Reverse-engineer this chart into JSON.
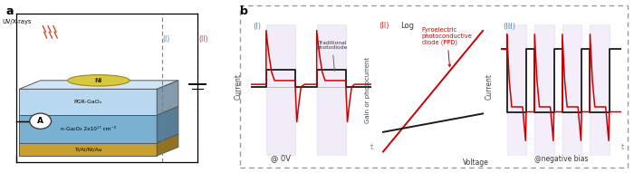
{
  "fig_width": 7.0,
  "fig_height": 1.91,
  "dpi": 100,
  "colors": {
    "red": "#cc0000",
    "black": "#1a1a1a",
    "blue_label": "#4488cc",
    "red_label": "#cc3333",
    "light_purple": "#ddd0ee",
    "gray_arrow": "#888888",
    "gray_border": "#999999",
    "device_blue_light": "#b8d8f0",
    "device_blue_mid": "#7ab0d0",
    "device_gold": "#c8a030",
    "device_ni": "#d8c840",
    "bg": "#f0f0f0"
  },
  "panel_a_label": "a",
  "panel_b_label": "b",
  "sub1_label": "(I)",
  "sub2_label": "(II)",
  "sub3_label": "(III)",
  "sub2_log": "Log",
  "sub2_red_text": "Pyroelectric\nphotoconductive\ndiode (PPD)",
  "sub2_voltage": "Voltage",
  "sub2_gain_ylabel": "Gain or photocurrent",
  "sub1_current_ylabel": "Current",
  "sub1_t_label": "t",
  "sub1_0v_label": "@ 0V",
  "sub1_annotation": "Traditional\nphotodiode",
  "sub3_current_ylabel": "Current",
  "sub3_t_label": "t",
  "sub3_bias_label": "@negative bias",
  "uv_label": "UV/X-rays",
  "ni_label": "Ni",
  "pgr_label": "PGR-GaOₓ",
  "nGaO_label": "n-Ga₂O₃ 2x10¹⁷ cm⁻³",
  "tial_label": "Ti/Al/Ni/Au",
  "ammeter_label": "A",
  "circuit_I_label": "(I)",
  "circuit_II_label": "(II)"
}
